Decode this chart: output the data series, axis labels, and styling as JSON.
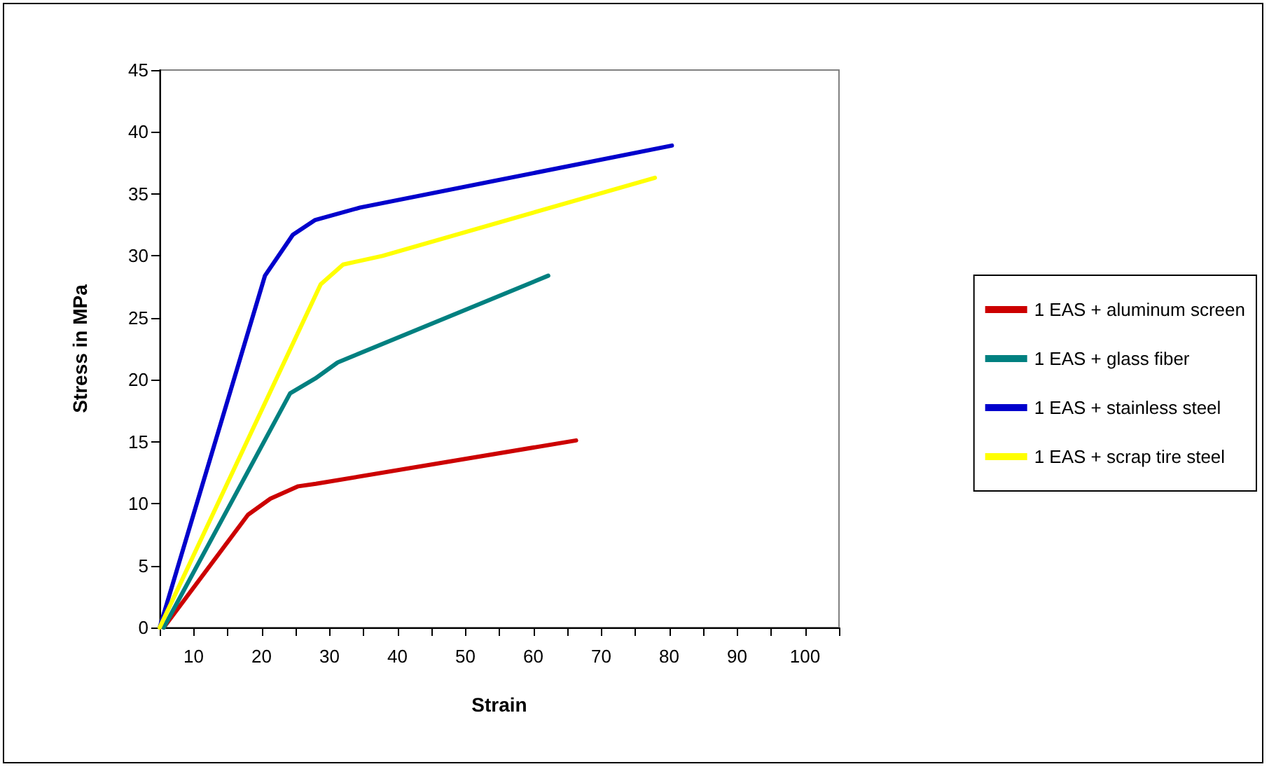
{
  "chart_data": {
    "type": "line",
    "xlabel": "Strain",
    "ylabel": "Stress in MPa",
    "xlim": [
      5,
      105
    ],
    "xticks": [
      {
        "value": 5,
        "label": null
      },
      10,
      {
        "value": 15,
        "label": null
      },
      20,
      {
        "value": 25,
        "label": null
      },
      30,
      {
        "value": 35,
        "label": null
      },
      40,
      {
        "value": 45,
        "label": null
      },
      50,
      {
        "value": 55,
        "label": null
      },
      60,
      {
        "value": 65,
        "label": null
      },
      70,
      {
        "value": 75,
        "label": null
      },
      80,
      {
        "value": 85,
        "label": null
      },
      90,
      {
        "value": 95,
        "label": null
      },
      100,
      {
        "value": 105,
        "label": null
      }
    ],
    "ylim": [
      0,
      45
    ],
    "yticks": [
      0,
      5,
      10,
      15,
      20,
      25,
      30,
      35,
      40,
      45
    ],
    "grid": false,
    "legend": "right",
    "marker": "none",
    "line_style": "solid",
    "series": [
      {
        "name": "1 EAS + aluminum screen",
        "color": "#cc0000",
        "x": [
          5.6,
          18,
          21.3,
          25.4,
          28,
          66.3
        ],
        "values": [
          0,
          9.1,
          10.4,
          11.4,
          11.6,
          15.1
        ]
      },
      {
        "name": "1 EAS + glass fiber",
        "color": "#008080",
        "x": [
          5.6,
          24.2,
          27.9,
          31.2,
          62.2
        ],
        "values": [
          0,
          18.9,
          20.1,
          21.4,
          28.4
        ]
      },
      {
        "name": "1 EAS + stainless steel",
        "color": "#0000cc",
        "x": [
          5,
          20.5,
          24.6,
          27.9,
          34.5,
          80.4
        ],
        "values": [
          0,
          28.4,
          31.7,
          32.9,
          33.9,
          38.9
        ]
      },
      {
        "name": "1 EAS + scrap tire steel",
        "color": "#ffff00",
        "x": [
          5,
          28.7,
          32,
          37.8,
          77.9
        ],
        "values": [
          0,
          27.7,
          29.3,
          30,
          36.3
        ]
      }
    ]
  }
}
